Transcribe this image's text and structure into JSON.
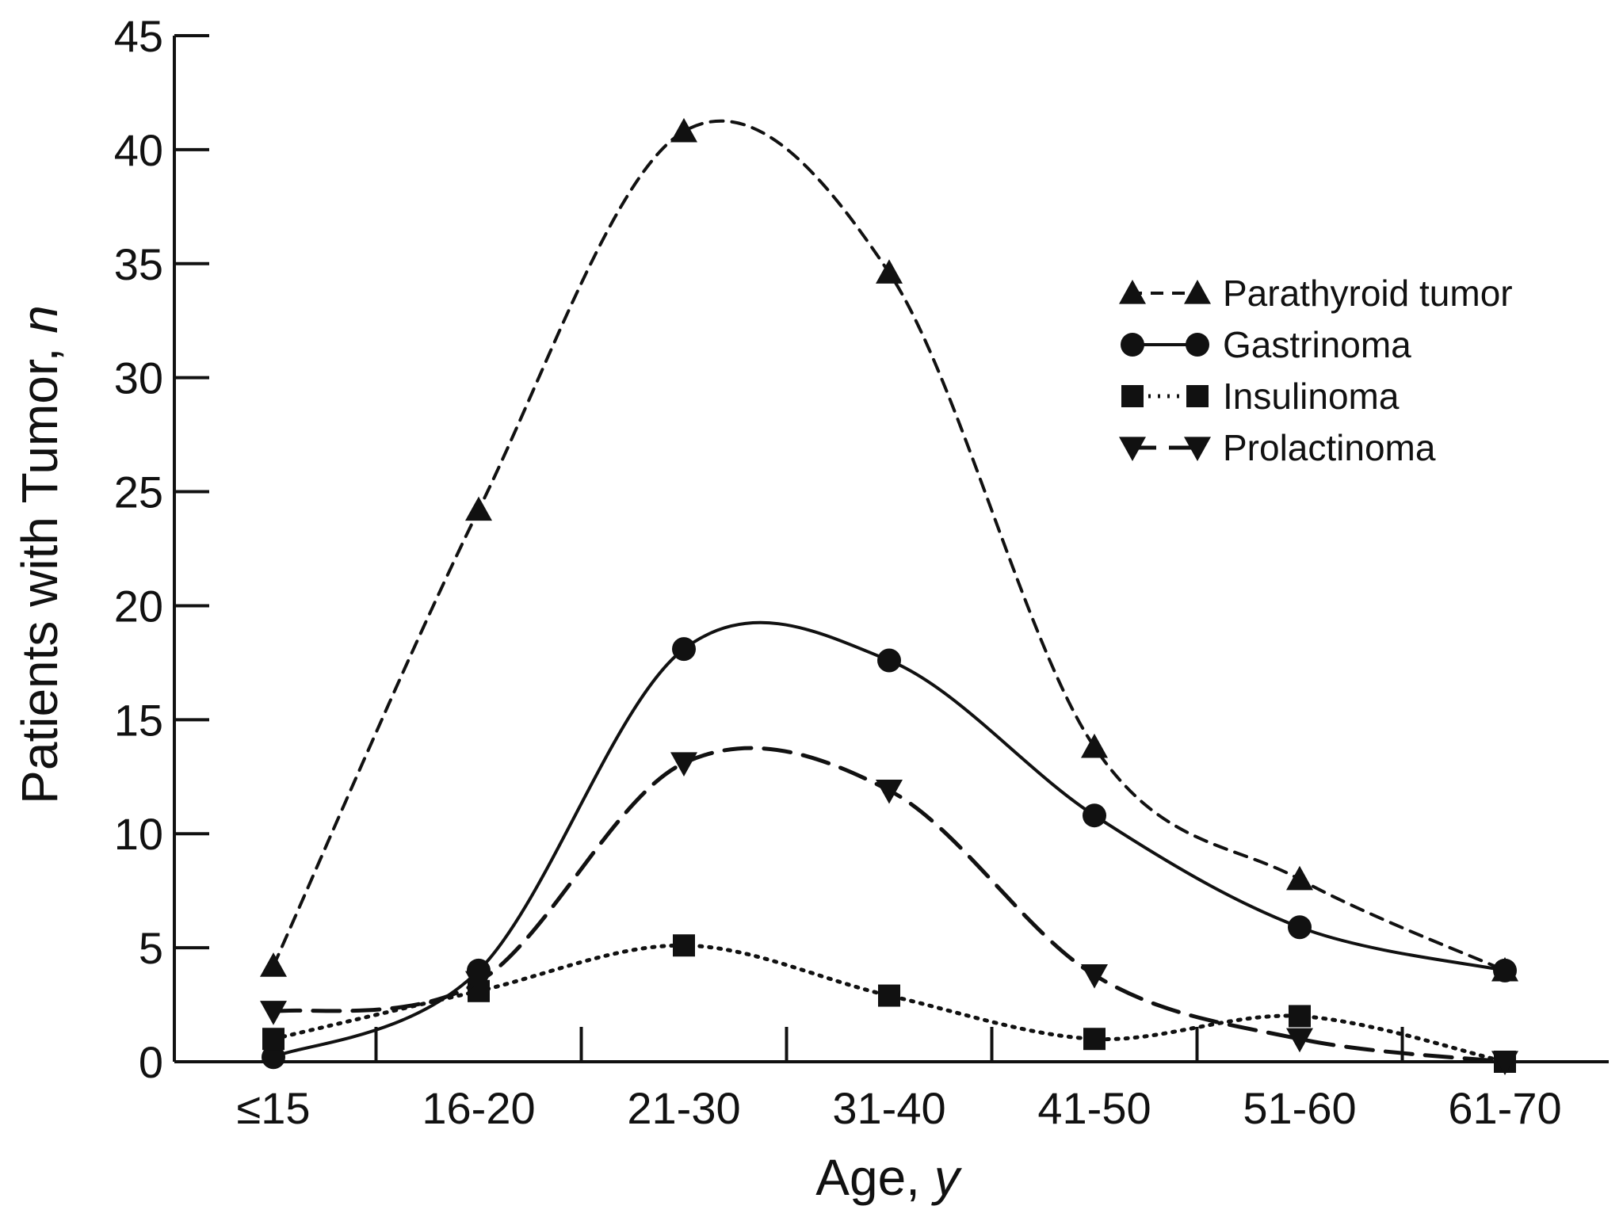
{
  "chart_data": {
    "type": "line",
    "title": "",
    "xlabel": "Age, y",
    "xlabel_parts": [
      "Age, ",
      "y"
    ],
    "ylabel": "Patients with Tumor, n",
    "ylabel_parts": [
      "Patients with Tumor, ",
      "n"
    ],
    "categories": [
      "≤15",
      "16-20",
      "21-30",
      "31-40",
      "41-50",
      "51-60",
      "61-70"
    ],
    "ylim": [
      0,
      45
    ],
    "yticks": [
      0,
      5,
      10,
      15,
      20,
      25,
      30,
      35,
      40,
      45
    ],
    "grid": false,
    "legend_position": "top-right",
    "series": [
      {
        "name": "Parathyroid tumor",
        "marker": "triangle-up",
        "line_style": "short-dash",
        "color": "#111111",
        "values": [
          4.2,
          24.2,
          40.8,
          34.6,
          13.8,
          8.0,
          4.0
        ]
      },
      {
        "name": "Gastrinoma",
        "marker": "circle",
        "line_style": "solid",
        "color": "#111111",
        "values": [
          0.2,
          4.0,
          18.1,
          17.6,
          10.8,
          5.9,
          4.0
        ]
      },
      {
        "name": "Insulinoma",
        "marker": "square",
        "line_style": "dotted",
        "color": "#111111",
        "values": [
          1.0,
          3.1,
          5.1,
          2.9,
          1.0,
          2.0,
          0.0
        ]
      },
      {
        "name": "Prolactinoma",
        "marker": "triangle-down",
        "line_style": "long-dash",
        "color": "#111111",
        "values": [
          2.2,
          3.5,
          13.1,
          11.9,
          3.8,
          1.0,
          0.0
        ]
      }
    ]
  }
}
